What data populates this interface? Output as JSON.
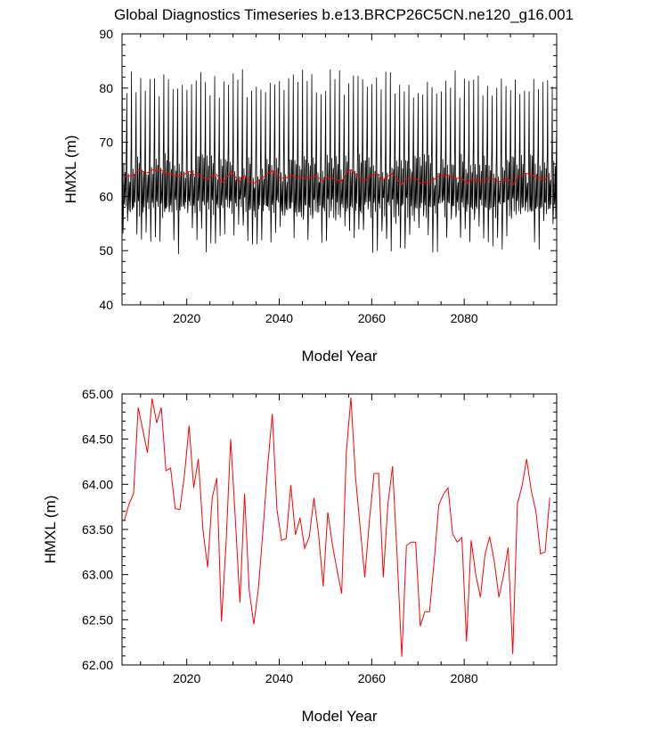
{
  "title": "Global Diagnostics Timeseries b.e13.BRCP26C5CN.ne120_g16.001",
  "colors": {
    "monthly": "#000000",
    "annual": "#ff0000",
    "axis": "#000000"
  },
  "chart_data": [
    {
      "type": "line",
      "name": "monthly-and-annual-hmxl",
      "xlabel": "Model Year",
      "ylabel": "HMXL (m)",
      "xlim": [
        2006,
        2100
      ],
      "ylim": [
        40,
        90
      ],
      "xticks": [
        2020,
        2040,
        2060,
        2080
      ],
      "xtick_labels": [
        "2020",
        "2040",
        "2060",
        "2080"
      ],
      "yticks": [
        40,
        50,
        60,
        70,
        80,
        90
      ],
      "ytick_labels": [
        "40",
        "50",
        "60",
        "70",
        "80",
        "90"
      ],
      "series": [
        {
          "name": "monthly",
          "color": "#000000",
          "seasonal_cycle_approx": true,
          "start_year": 2006,
          "end_year": 2100,
          "annual_max_range": [
            78,
            83.5
          ],
          "annual_min_range": [
            49,
            56
          ],
          "secondary_peak_range": [
            63,
            68
          ]
        },
        {
          "name": "annual-mean",
          "color": "#ff0000",
          "values_ref": "annual_means"
        }
      ]
    },
    {
      "type": "line",
      "name": "annual-mean-hmxl",
      "xlabel": "Model Year",
      "ylabel": "HMXL (m)",
      "xlim": [
        2006,
        2100
      ],
      "ylim": [
        62.0,
        65.0
      ],
      "xticks": [
        2020,
        2040,
        2060,
        2080
      ],
      "xtick_labels": [
        "2020",
        "2040",
        "2060",
        "2080"
      ],
      "yticks": [
        62.0,
        62.5,
        63.0,
        63.5,
        64.0,
        64.5,
        65.0
      ],
      "ytick_labels": [
        "62.00",
        "62.50",
        "63.00",
        "63.50",
        "64.00",
        "64.50",
        "65.00"
      ],
      "series": [
        {
          "name": "annual-mean",
          "color": "#ff0000",
          "values_ref": "annual_means"
        }
      ]
    }
  ],
  "annual_means": {
    "start_year": 2006.5,
    "step": 1,
    "values": [
      63.6,
      63.78,
      63.9,
      64.85,
      64.6,
      64.35,
      64.95,
      64.68,
      64.85,
      64.15,
      64.18,
      63.73,
      63.72,
      64.1,
      64.65,
      63.96,
      64.28,
      63.5,
      63.08,
      63.85,
      64.07,
      62.48,
      63.35,
      64.5,
      63.62,
      62.69,
      63.9,
      62.83,
      62.45,
      62.85,
      63.5,
      64.2,
      64.78,
      63.72,
      63.38,
      63.4,
      63.99,
      63.44,
      63.63,
      63.29,
      63.42,
      63.85,
      63.45,
      62.87,
      63.69,
      63.33,
      63.05,
      62.79,
      64.35,
      64.96,
      64.08,
      63.52,
      62.97,
      63.6,
      64.12,
      64.12,
      62.97,
      63.78,
      64.2,
      63.2,
      62.09,
      63.32,
      63.36,
      63.36,
      62.43,
      62.59,
      62.59,
      63.15,
      63.77,
      63.89,
      63.96,
      63.45,
      63.36,
      63.41,
      62.26,
      63.38,
      63.0,
      62.75,
      63.22,
      63.42,
      63.15,
      62.75,
      62.99,
      63.3,
      62.12,
      63.78,
      63.98,
      64.28,
      63.93,
      63.7,
      63.23,
      63.25,
      63.85
    ]
  }
}
